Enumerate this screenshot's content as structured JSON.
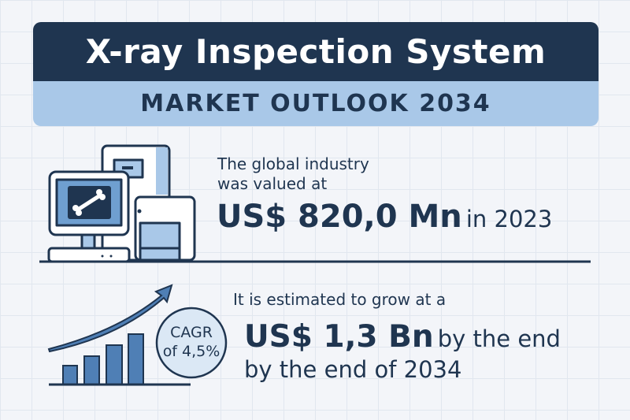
{
  "header": {
    "title": "X-ray Inspection System",
    "subtitle": "MARKET OUTLOOK 2034"
  },
  "valuation": {
    "line1": "The global industry",
    "line2": "was valued at",
    "value": "US$ 820,0 Mn",
    "year": "in 2023"
  },
  "forecast": {
    "intro": "It is estimated to grow at a",
    "value": "US$ 1,3 Bn",
    "value_suffix": "by the end",
    "line3": "by the end of 2034"
  },
  "cagr": {
    "label": "CAGR",
    "value": "of 4,5%"
  },
  "colors": {
    "navy": "#1f3550",
    "light_blue": "#a9c8e8",
    "mid_blue": "#4f7fb5"
  },
  "icons": [
    "xray-machine-icon",
    "growth-chart-icon"
  ]
}
